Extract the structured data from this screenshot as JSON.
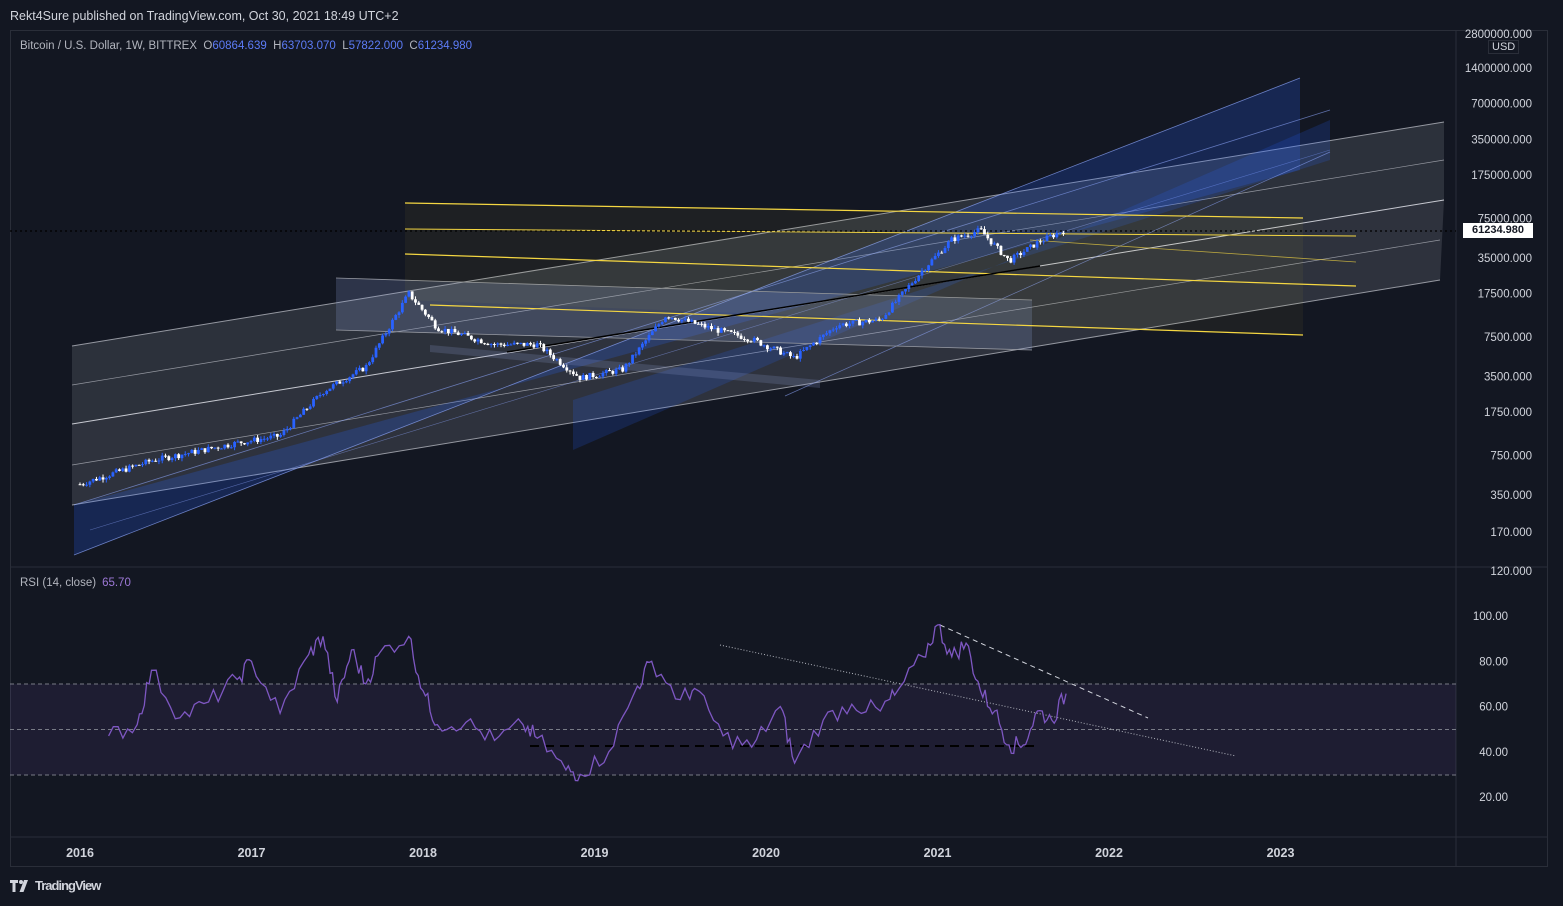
{
  "publisher": "Rekt4Sure published on TradingView.com, Oct 30, 2021 18:49 UTC+2",
  "footer": {
    "brand": "TradingView",
    "logo_icon": "tradingview-logo-icon"
  },
  "legend": {
    "symbol": "Bitcoin / U.S. Dollar, 1W, BITTREX",
    "o_label": "O",
    "o_value": "60864.639",
    "h_label": "H",
    "h_value": "63703.070",
    "l_label": "L",
    "l_value": "57822.000",
    "c_label": "C",
    "c_value": "61234.980"
  },
  "rsi_legend": {
    "name": "RSI (14, close)",
    "value": "65.70"
  },
  "currency": "USD",
  "last_price_tag": "61234.980",
  "colors": {
    "background": "#131722",
    "up": "#2962ff",
    "down": "#ffffff",
    "rsi": "#7e57c2",
    "channel_yellow": "#f5d742",
    "grid": "#2a2e39"
  },
  "chart_data": [
    {
      "type": "candlestick",
      "title": "Bitcoin / U.S. Dollar, 1W, BITTREX",
      "y_scale": "log",
      "ylim": [
        120,
        2800000
      ],
      "price_axis_labels": [
        "2800000.000",
        "1400000.000",
        "700000.000",
        "350000.000",
        "175000.000",
        "75000.000",
        "35000.000",
        "17500.000",
        "7500.000",
        "3500.000",
        "1750.000",
        "750.000",
        "350.000",
        "170.000",
        "120.000"
      ],
      "x_tick_labels": [
        "2016",
        "2017",
        "2018",
        "2019",
        "2020",
        "2021",
        "2022",
        "2023"
      ],
      "last_close": 61234.98,
      "approx_price_path": [
        {
          "x": "2016-01",
          "y": 430
        },
        {
          "x": "2016-06",
          "y": 680
        },
        {
          "x": "2016-12",
          "y": 960
        },
        {
          "x": "2017-03",
          "y": 1100
        },
        {
          "x": "2017-06",
          "y": 2600
        },
        {
          "x": "2017-09",
          "y": 4200
        },
        {
          "x": "2017-12",
          "y": 17500
        },
        {
          "x": "2018-02",
          "y": 9000
        },
        {
          "x": "2018-06",
          "y": 6500
        },
        {
          "x": "2018-09",
          "y": 6500
        },
        {
          "x": "2018-12",
          "y": 3400
        },
        {
          "x": "2019-03",
          "y": 4000
        },
        {
          "x": "2019-06",
          "y": 11500
        },
        {
          "x": "2019-09",
          "y": 9000
        },
        {
          "x": "2019-12",
          "y": 7200
        },
        {
          "x": "2020-03",
          "y": 5000
        },
        {
          "x": "2020-06",
          "y": 9500
        },
        {
          "x": "2020-09",
          "y": 10500
        },
        {
          "x": "2020-12",
          "y": 28000
        },
        {
          "x": "2021-02",
          "y": 50000
        },
        {
          "x": "2021-04",
          "y": 60000
        },
        {
          "x": "2021-06",
          "y": 33000
        },
        {
          "x": "2021-08",
          "y": 47000
        },
        {
          "x": "2021-10",
          "y": 61234.98
        }
      ]
    },
    {
      "type": "line",
      "title": "RSI (14, close)",
      "ylim": [
        0,
        110
      ],
      "y_tick_labels": [
        "100.00",
        "80.00",
        "60.00",
        "40.00",
        "20.00"
      ],
      "band": {
        "upper": 70,
        "middle": 50,
        "lower": 30
      },
      "last_value": 65.7,
      "series": [
        {
          "values": [
            {
              "x": "2016-03",
              "y": 47
            },
            {
              "x": "2016-05",
              "y": 52
            },
            {
              "x": "2016-06",
              "y": 76
            },
            {
              "x": "2016-08",
              "y": 55
            },
            {
              "x": "2016-10",
              "y": 62
            },
            {
              "x": "2016-12",
              "y": 72
            },
            {
              "x": "2017-01",
              "y": 80
            },
            {
              "x": "2017-03",
              "y": 57
            },
            {
              "x": "2017-05",
              "y": 83
            },
            {
              "x": "2017-06",
              "y": 91
            },
            {
              "x": "2017-07",
              "y": 62
            },
            {
              "x": "2017-08",
              "y": 85
            },
            {
              "x": "2017-09",
              "y": 70
            },
            {
              "x": "2017-10",
              "y": 84
            },
            {
              "x": "2017-12",
              "y": 91
            },
            {
              "x": "2018-01",
              "y": 67
            },
            {
              "x": "2018-02",
              "y": 52
            },
            {
              "x": "2018-04",
              "y": 53
            },
            {
              "x": "2018-06",
              "y": 45
            },
            {
              "x": "2018-08",
              "y": 52
            },
            {
              "x": "2018-09",
              "y": 46
            },
            {
              "x": "2018-11",
              "y": 32
            },
            {
              "x": "2018-12",
              "y": 30
            },
            {
              "x": "2019-02",
              "y": 40
            },
            {
              "x": "2019-04",
              "y": 69
            },
            {
              "x": "2019-05",
              "y": 80
            },
            {
              "x": "2019-07",
              "y": 63
            },
            {
              "x": "2019-08",
              "y": 68
            },
            {
              "x": "2019-10",
              "y": 47
            },
            {
              "x": "2019-12",
              "y": 42
            },
            {
              "x": "2020-02",
              "y": 60
            },
            {
              "x": "2020-03",
              "y": 35
            },
            {
              "x": "2020-05",
              "y": 54
            },
            {
              "x": "2020-07",
              "y": 61
            },
            {
              "x": "2020-09",
              "y": 58
            },
            {
              "x": "2020-10",
              "y": 65
            },
            {
              "x": "2020-12",
              "y": 82
            },
            {
              "x": "2021-01",
              "y": 96
            },
            {
              "x": "2021-02",
              "y": 82
            },
            {
              "x": "2021-03",
              "y": 88
            },
            {
              "x": "2021-04",
              "y": 67
            },
            {
              "x": "2021-05",
              "y": 58
            },
            {
              "x": "2021-06",
              "y": 43
            },
            {
              "x": "2021-07",
              "y": 43
            },
            {
              "x": "2021-08",
              "y": 58
            },
            {
              "x": "2021-09",
              "y": 54
            },
            {
              "x": "2021-10",
              "y": 65.7
            }
          ]
        }
      ]
    }
  ]
}
